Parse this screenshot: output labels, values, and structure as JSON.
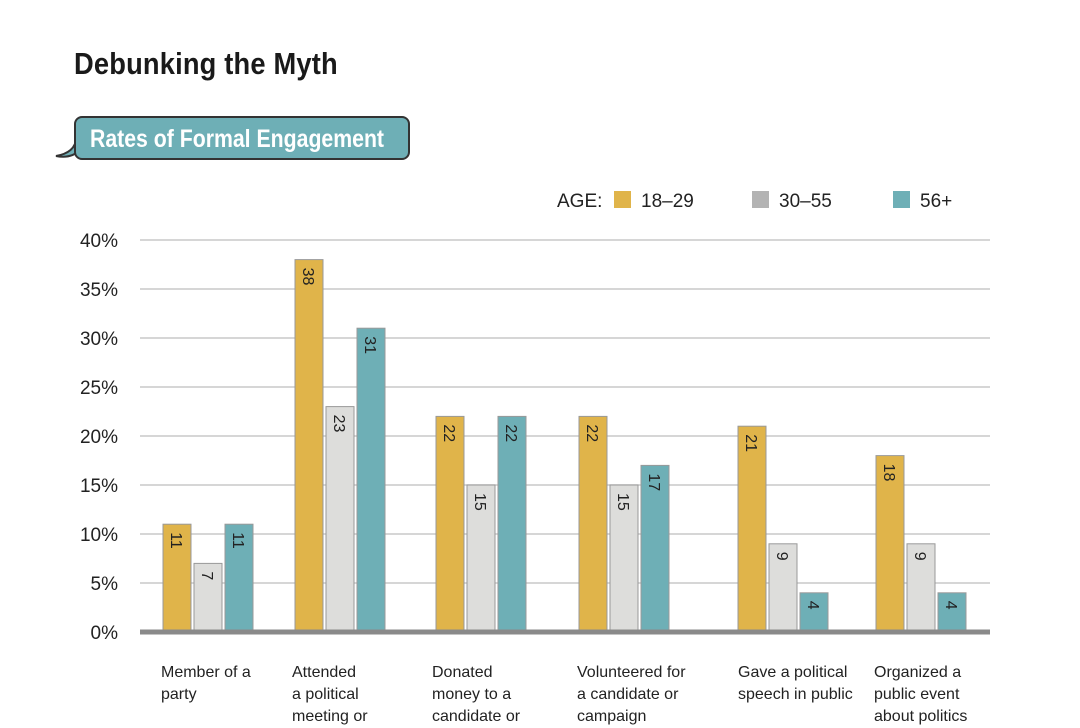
{
  "title": "Debunking the Myth",
  "subtitle": "Rates of Formal Engagement",
  "chart_data": {
    "type": "bar",
    "title": "Rates of Formal Engagement",
    "legend_title": "AGE:",
    "legend_position": "top-right",
    "categories": [
      [
        "Member of a",
        "party"
      ],
      [
        "Attended",
        "a political",
        "meeting or"
      ],
      [
        "Donated",
        "money to a",
        "candidate or"
      ],
      [
        "Volunteered for",
        "a candidate or",
        "campaign"
      ],
      [
        "Gave a political",
        "speech in public"
      ],
      [
        "Organized a",
        "public event",
        "about politics"
      ]
    ],
    "series": [
      {
        "name": "18–29",
        "color": "#e0b44a",
        "values": [
          11,
          38,
          22,
          22,
          21,
          18
        ]
      },
      {
        "name": "30–55",
        "color": "#dddddb",
        "legend_color": "#b3b3b3",
        "values": [
          7,
          23,
          15,
          15,
          9,
          9
        ]
      },
      {
        "name": "56+",
        "color": "#6eafb6",
        "values": [
          11,
          31,
          22,
          17,
          4,
          4
        ]
      }
    ],
    "yticks": [
      "0%",
      "5%",
      "10%",
      "15%",
      "20%",
      "25%",
      "30%",
      "35%",
      "40%"
    ],
    "ylim": [
      0,
      40
    ],
    "grid": true
  }
}
